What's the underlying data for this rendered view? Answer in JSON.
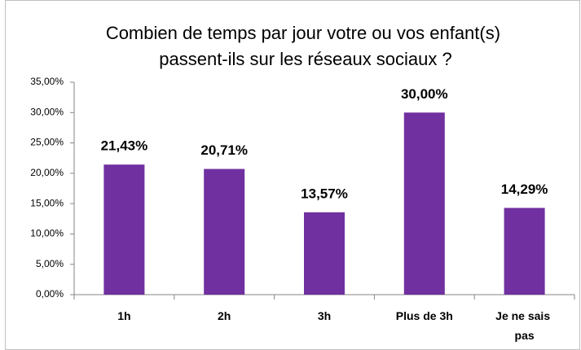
{
  "chart_data": {
    "type": "bar",
    "title": "Combien de temps par jour votre ou vos enfant(s) passent-ils sur les réseaux sociaux ?",
    "categories": [
      "1h",
      "2h",
      "3h",
      "Plus de 3h",
      "Je ne sais pas"
    ],
    "values": [
      21.43,
      20.71,
      13.57,
      30.0,
      14.29
    ],
    "value_labels": [
      "21,43%",
      "20,71%",
      "13,57%",
      "30,00%",
      "14,29%"
    ],
    "color": "#7030a0",
    "ylim": [
      0,
      35
    ],
    "yticks": [
      {
        "value": 0,
        "label": "0,00%"
      },
      {
        "value": 5,
        "label": "5,00%"
      },
      {
        "value": 10,
        "label": "10,00%"
      },
      {
        "value": 15,
        "label": "15,00%"
      },
      {
        "value": 20,
        "label": "20,00%"
      },
      {
        "value": 25,
        "label": "25,00%"
      },
      {
        "value": 30,
        "label": "30,00%"
      },
      {
        "value": 35,
        "label": "35,00%"
      }
    ],
    "grid": false
  }
}
